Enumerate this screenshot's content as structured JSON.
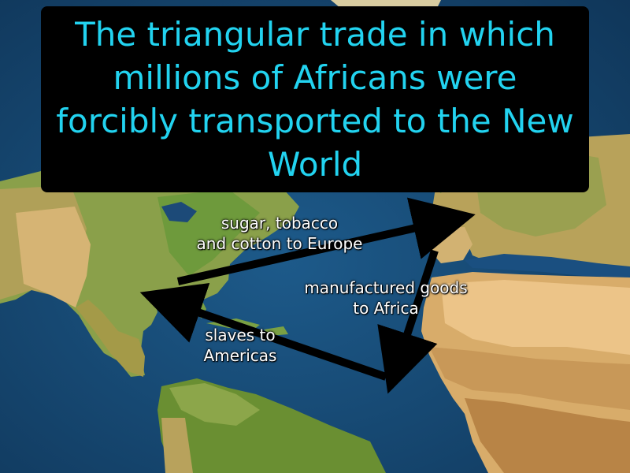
{
  "title": "The triangular trade in which millions of Africans were forcibly transported to the New World",
  "routes": [
    {
      "label": "sugar, tobacco\nand cotton to Europe"
    },
    {
      "label": "manufactured goods\nto Africa"
    },
    {
      "label": "slaves to\nAmericas"
    }
  ],
  "colors": {
    "ocean": "#123e66",
    "title_text": "#22d3f0",
    "title_background": "#000000",
    "arrow": "#000000",
    "label_text": "#ffffff"
  }
}
